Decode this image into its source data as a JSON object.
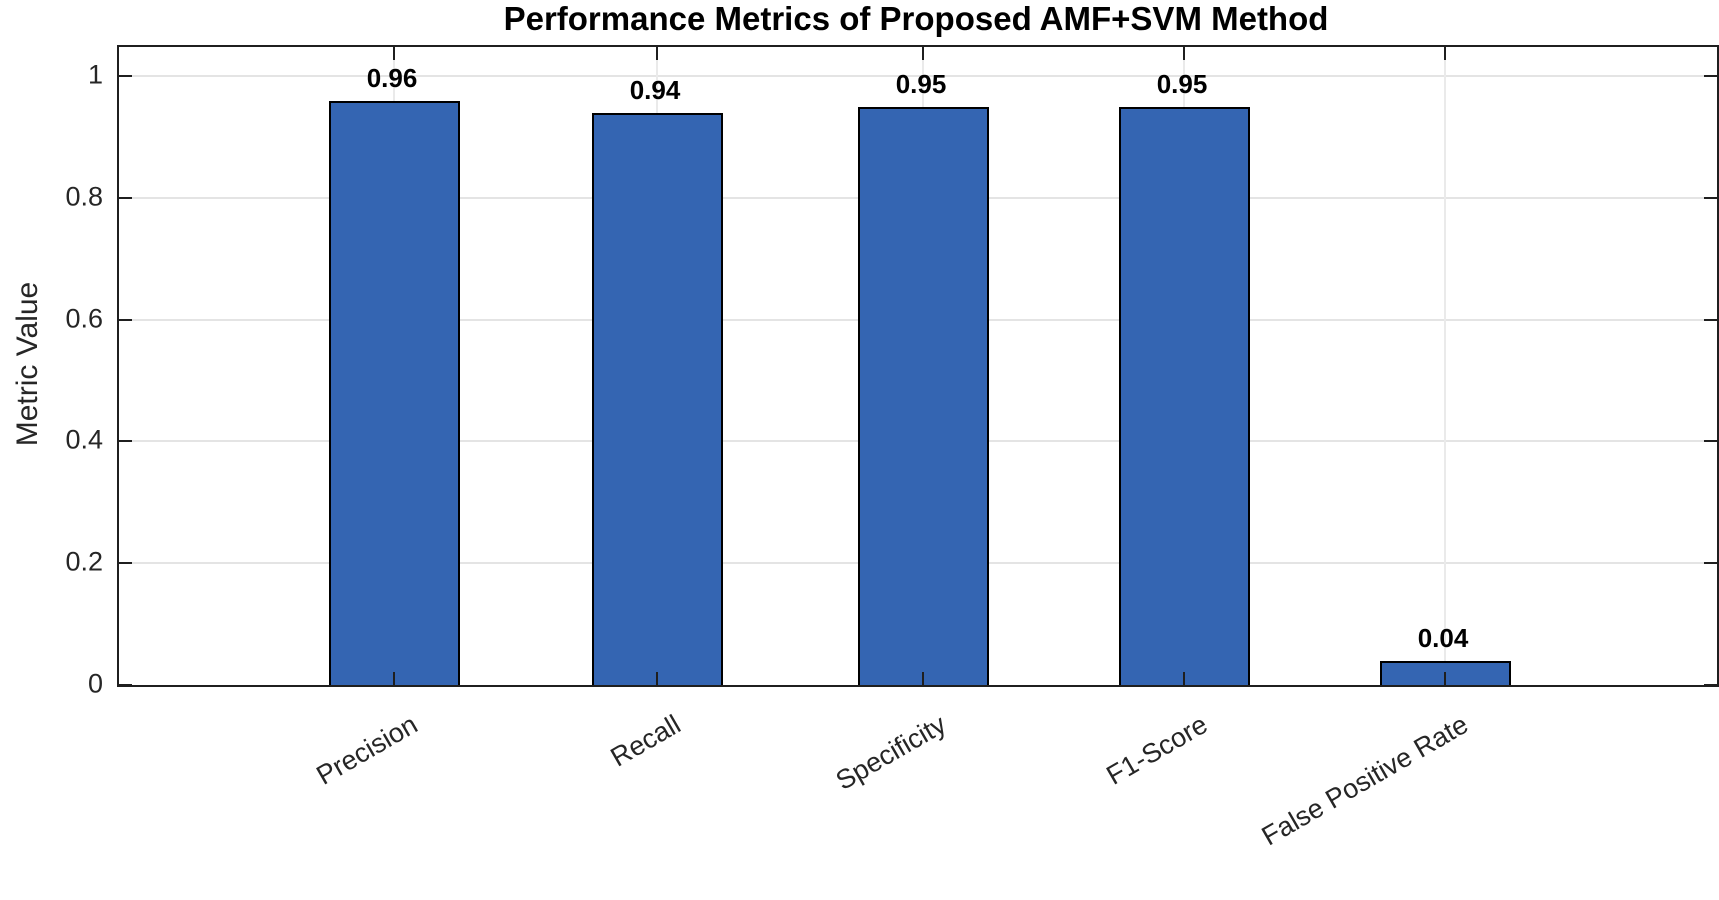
{
  "chart_data": {
    "type": "bar",
    "title": "Performance Metrics of Proposed AMF+SVM Method",
    "ylabel": "Metric Value",
    "xlabel": "",
    "categories": [
      "Precision",
      "Recall",
      "Specificity",
      "F1-Score",
      "False Positive Rate"
    ],
    "values": [
      0.96,
      0.94,
      0.95,
      0.95,
      0.04
    ],
    "value_labels": [
      "0.96",
      "0.94",
      "0.95",
      "0.95",
      "0.04"
    ],
    "yticks": [
      0,
      0.2,
      0.4,
      0.6,
      0.8,
      1
    ],
    "ytick_labels": [
      "0",
      "0.2",
      "0.4",
      "0.6",
      "0.8",
      "1"
    ],
    "ylim": [
      0,
      1.048
    ],
    "grid": true,
    "legend_position": "none",
    "bar_color": "#3465B2",
    "bar_edge_color": "#000000",
    "axis_color": "#1f1f1f",
    "grid_color": "#e4e4e4",
    "tick_label_color": "#262626",
    "title_color": "#000000"
  }
}
